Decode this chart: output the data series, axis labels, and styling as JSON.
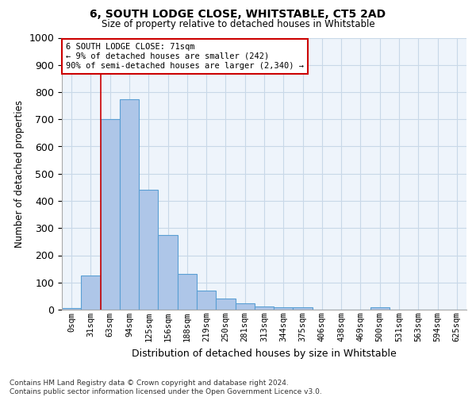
{
  "title": "6, SOUTH LODGE CLOSE, WHITSTABLE, CT5 2AD",
  "subtitle": "Size of property relative to detached houses in Whitstable",
  "xlabel": "Distribution of detached houses by size in Whitstable",
  "ylabel": "Number of detached properties",
  "footer_line1": "Contains HM Land Registry data © Crown copyright and database right 2024.",
  "footer_line2": "Contains public sector information licensed under the Open Government Licence v3.0.",
  "bar_labels": [
    "0sqm",
    "31sqm",
    "63sqm",
    "94sqm",
    "125sqm",
    "156sqm",
    "188sqm",
    "219sqm",
    "250sqm",
    "281sqm",
    "313sqm",
    "344sqm",
    "375sqm",
    "406sqm",
    "438sqm",
    "469sqm",
    "500sqm",
    "531sqm",
    "563sqm",
    "594sqm",
    "625sqm"
  ],
  "bar_values": [
    5,
    125,
    700,
    775,
    440,
    275,
    130,
    70,
    40,
    22,
    12,
    10,
    8,
    0,
    0,
    0,
    8,
    0,
    0,
    0,
    0
  ],
  "bar_color": "#aec6e8",
  "bar_edge_color": "#5a9fd4",
  "ylim": [
    0,
    1000
  ],
  "yticks": [
    0,
    100,
    200,
    300,
    400,
    500,
    600,
    700,
    800,
    900,
    1000
  ],
  "property_line_x": 2.0,
  "annotation_title": "6 SOUTH LODGE CLOSE: 71sqm",
  "annotation_line2": "← 9% of detached houses are smaller (242)",
  "annotation_line3": "90% of semi-detached houses are larger (2,340) →",
  "annotation_box_color": "#ffffff",
  "annotation_border_color": "#cc0000",
  "vline_color": "#cc0000",
  "grid_color": "#c8d8e8",
  "bg_color": "#eef4fb"
}
